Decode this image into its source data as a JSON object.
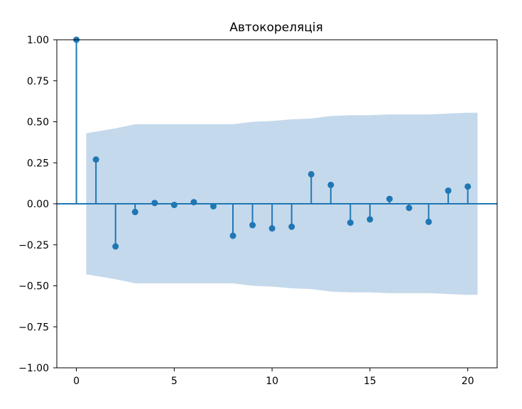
{
  "chart_data": {
    "type": "stem",
    "title": "Автокореляція",
    "xlabel": "",
    "ylabel": "",
    "xlim": [
      -1,
      21.5
    ],
    "ylim": [
      -1.0,
      1.0
    ],
    "x_ticks": [
      0,
      5,
      10,
      15,
      20
    ],
    "y_ticks": [
      -1.0,
      -0.75,
      -0.5,
      -0.25,
      0.0,
      0.25,
      0.5,
      0.75,
      1.0
    ],
    "x_tick_labels": [
      "0",
      "5",
      "10",
      "15",
      "20"
    ],
    "y_tick_labels": [
      "−1.00",
      "−0.75",
      "−0.50",
      "−0.25",
      "0.00",
      "0.25",
      "0.50",
      "0.75",
      "1.00"
    ],
    "grid": false,
    "series": [
      {
        "lags": [
          0,
          1,
          2,
          3,
          4,
          5,
          6,
          7,
          8,
          9,
          10,
          11,
          12,
          13,
          14,
          15,
          16,
          17,
          18,
          19,
          20
        ],
        "values": [
          1.0,
          0.27,
          -0.26,
          -0.05,
          0.005,
          -0.007,
          0.01,
          -0.015,
          -0.195,
          -0.13,
          -0.15,
          -0.14,
          0.18,
          0.115,
          -0.115,
          -0.095,
          0.03,
          -0.025,
          -0.11,
          0.08,
          0.105
        ]
      }
    ],
    "confidence_band": {
      "x": [
        0.5,
        1,
        2,
        3,
        4,
        5,
        6,
        7,
        8,
        9,
        10,
        11,
        12,
        13,
        14,
        15,
        16,
        17,
        18,
        19,
        20,
        20.5
      ],
      "upper": [
        0.43,
        0.44,
        0.46,
        0.485,
        0.485,
        0.485,
        0.485,
        0.485,
        0.485,
        0.5,
        0.505,
        0.515,
        0.52,
        0.535,
        0.54,
        0.54,
        0.545,
        0.545,
        0.545,
        0.55,
        0.555,
        0.555
      ]
    },
    "colors": {
      "stem": "#1f77b4",
      "band": "#c5d9ec",
      "baseline": "#1f77b4"
    }
  }
}
